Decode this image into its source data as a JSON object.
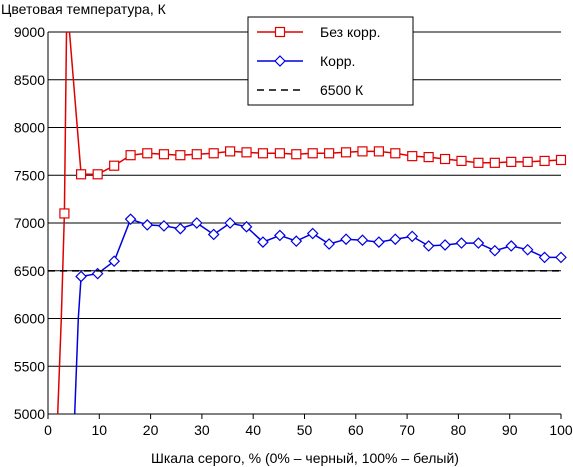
{
  "chart_data": {
    "type": "line",
    "title": "",
    "ylabel": "Цветовая температура, К",
    "xlabel": "Шкала серого, % (0% – черный, 100% – белый)",
    "xlim": [
      0,
      100
    ],
    "ylim": [
      5000,
      9000
    ],
    "xticks": [
      "0",
      "10",
      "20",
      "30",
      "40",
      "50",
      "60",
      "70",
      "80",
      "90",
      "100"
    ],
    "yticks": [
      "5000",
      "5500",
      "6000",
      "6500",
      "7000",
      "7500",
      "8000",
      "8500",
      "9000"
    ],
    "grid": "horizontal",
    "legend_position": "top-center",
    "series": [
      {
        "name": "Без корр.",
        "color": "#e00000",
        "marker": "square",
        "points": [
          [
            1.9,
            5000
          ],
          [
            2.6,
            6000
          ],
          [
            3.2,
            7100
          ],
          [
            3.6,
            9000
          ],
          [
            4.2,
            9000
          ],
          [
            6.45,
            7510
          ],
          [
            9.68,
            7510
          ],
          [
            12.9,
            7600
          ],
          [
            16.1,
            7710
          ],
          [
            19.35,
            7730
          ],
          [
            22.6,
            7720
          ],
          [
            25.8,
            7710
          ],
          [
            29.0,
            7720
          ],
          [
            32.3,
            7730
          ],
          [
            35.5,
            7750
          ],
          [
            38.7,
            7740
          ],
          [
            41.9,
            7730
          ],
          [
            45.2,
            7730
          ],
          [
            48.4,
            7720
          ],
          [
            51.6,
            7730
          ],
          [
            54.8,
            7730
          ],
          [
            58.1,
            7740
          ],
          [
            61.3,
            7750
          ],
          [
            64.5,
            7750
          ],
          [
            67.7,
            7730
          ],
          [
            71.0,
            7700
          ],
          [
            74.2,
            7690
          ],
          [
            77.4,
            7670
          ],
          [
            80.6,
            7650
          ],
          [
            83.9,
            7630
          ],
          [
            87.1,
            7630
          ],
          [
            90.3,
            7640
          ],
          [
            93.5,
            7640
          ],
          [
            96.8,
            7650
          ],
          [
            100,
            7660
          ]
        ]
      },
      {
        "name": "Корр.",
        "color": "#0000e0",
        "marker": "diamond",
        "points": [
          [
            5.2,
            5000
          ],
          [
            5.9,
            6000
          ],
          [
            6.45,
            6440
          ],
          [
            9.68,
            6470
          ],
          [
            12.9,
            6600
          ],
          [
            16.1,
            7040
          ],
          [
            19.35,
            6980
          ],
          [
            22.6,
            6970
          ],
          [
            25.8,
            6940
          ],
          [
            29.0,
            7000
          ],
          [
            32.3,
            6880
          ],
          [
            35.5,
            7000
          ],
          [
            38.7,
            6960
          ],
          [
            41.9,
            6800
          ],
          [
            45.2,
            6870
          ],
          [
            48.4,
            6810
          ],
          [
            51.6,
            6890
          ],
          [
            54.8,
            6780
          ],
          [
            58.1,
            6830
          ],
          [
            61.3,
            6820
          ],
          [
            64.5,
            6800
          ],
          [
            67.7,
            6830
          ],
          [
            71.0,
            6860
          ],
          [
            74.2,
            6760
          ],
          [
            77.4,
            6770
          ],
          [
            80.6,
            6790
          ],
          [
            83.9,
            6790
          ],
          [
            87.1,
            6710
          ],
          [
            90.3,
            6760
          ],
          [
            93.5,
            6720
          ],
          [
            96.8,
            6640
          ],
          [
            100,
            6640
          ]
        ]
      },
      {
        "name": "6500 К",
        "color": "#000000",
        "marker": "none",
        "dashed": true,
        "points": [
          [
            0,
            6500
          ],
          [
            100,
            6500
          ]
        ]
      }
    ]
  }
}
